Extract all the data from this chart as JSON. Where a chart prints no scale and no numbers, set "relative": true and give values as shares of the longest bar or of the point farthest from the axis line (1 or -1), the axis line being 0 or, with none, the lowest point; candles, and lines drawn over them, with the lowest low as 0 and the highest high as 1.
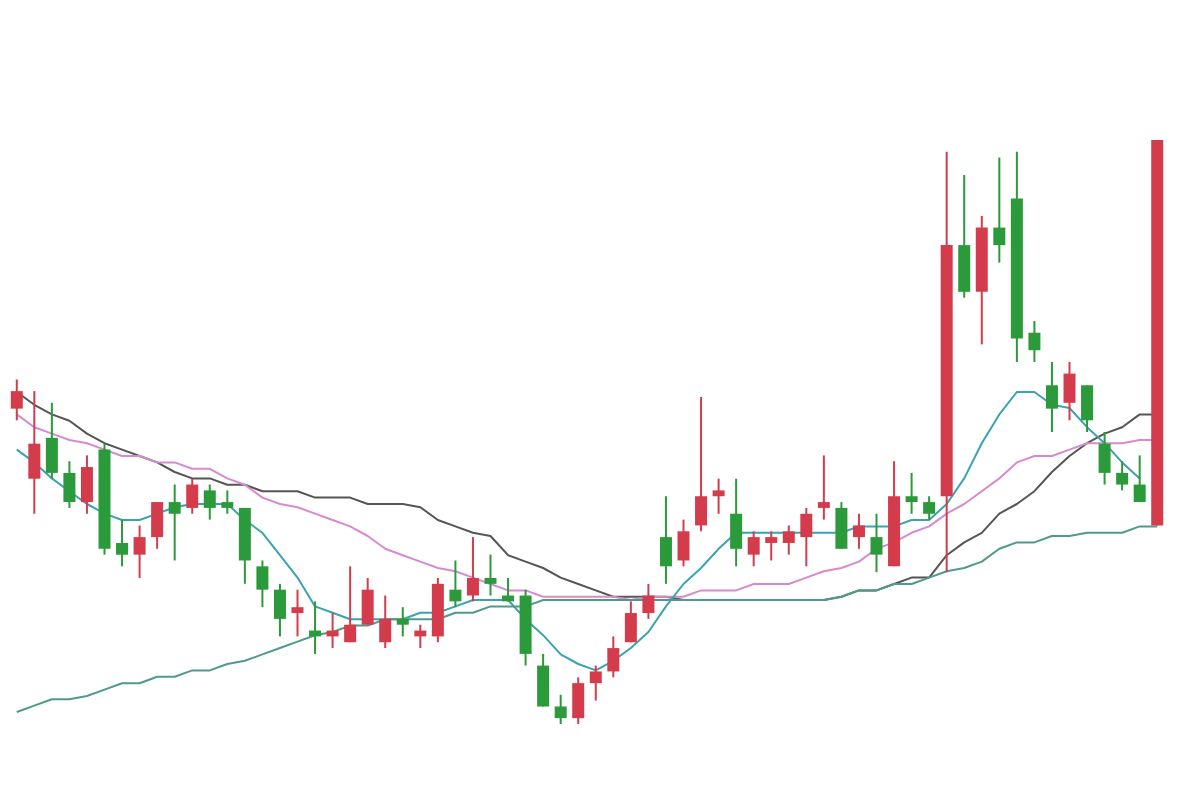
{
  "chart_data": [
    {
      "type": "candlestick",
      "relative": true,
      "categories": [
        null,
        null,
        null,
        null,
        null,
        null,
        null,
        null,
        null,
        null,
        null,
        null,
        null,
        null,
        null,
        null,
        null,
        null,
        null,
        null,
        null,
        null,
        null,
        null,
        null,
        null,
        null,
        null,
        null,
        null,
        null,
        null,
        null,
        null,
        null,
        null,
        null,
        null,
        null,
        null,
        null,
        null,
        null,
        null,
        null,
        null,
        null,
        null,
        null,
        null,
        null,
        null,
        null,
        null,
        null,
        null,
        null,
        null,
        null,
        null,
        null,
        null,
        null,
        null,
        null,
        null
      ],
      "ohlc": [
        [
          0.54,
          0.59,
          0.52,
          0.57
        ],
        [
          0.42,
          0.57,
          0.36,
          0.48
        ],
        [
          0.49,
          0.55,
          0.42,
          0.43
        ],
        [
          0.43,
          0.45,
          0.37,
          0.38
        ],
        [
          0.38,
          0.46,
          0.36,
          0.44
        ],
        [
          0.47,
          0.48,
          0.29,
          0.3
        ],
        [
          0.31,
          0.35,
          0.27,
          0.29
        ],
        [
          0.29,
          0.34,
          0.25,
          0.32
        ],
        [
          0.32,
          0.38,
          0.3,
          0.38
        ],
        [
          0.38,
          0.41,
          0.28,
          0.36
        ],
        [
          0.37,
          0.42,
          0.36,
          0.41
        ],
        [
          0.4,
          0.41,
          0.35,
          0.37
        ],
        [
          0.38,
          0.4,
          0.36,
          0.37
        ],
        [
          0.37,
          0.37,
          0.24,
          0.28
        ],
        [
          0.27,
          0.28,
          0.2,
          0.23
        ],
        [
          0.23,
          0.24,
          0.15,
          0.18
        ],
        [
          0.19,
          0.23,
          0.15,
          0.2
        ],
        [
          0.16,
          0.21,
          0.12,
          0.15
        ],
        [
          0.15,
          0.19,
          0.13,
          0.16
        ],
        [
          0.14,
          0.27,
          0.14,
          0.17
        ],
        [
          0.17,
          0.25,
          0.17,
          0.23
        ],
        [
          0.14,
          0.22,
          0.13,
          0.18
        ],
        [
          0.18,
          0.2,
          0.15,
          0.17
        ],
        [
          0.15,
          0.17,
          0.13,
          0.16
        ],
        [
          0.15,
          0.25,
          0.14,
          0.24
        ],
        [
          0.23,
          0.28,
          0.2,
          0.21
        ],
        [
          0.22,
          0.32,
          0.21,
          0.25
        ],
        [
          0.25,
          0.29,
          0.22,
          0.24
        ],
        [
          0.22,
          0.25,
          0.21,
          0.21
        ],
        [
          0.22,
          0.23,
          0.1,
          0.12
        ],
        [
          0.1,
          0.12,
          0.03,
          0.03
        ],
        [
          0.03,
          0.05,
          0,
          0.01
        ],
        [
          0.01,
          0.08,
          0,
          0.07
        ],
        [
          0.07,
          0.1,
          0.04,
          0.09
        ],
        [
          0.09,
          0.15,
          0.08,
          0.13
        ],
        [
          0.14,
          0.21,
          0.14,
          0.19
        ],
        [
          0.19,
          0.24,
          0.18,
          0.22
        ],
        [
          0.32,
          0.39,
          0.24,
          0.27
        ],
        [
          0.28,
          0.35,
          0.27,
          0.33
        ],
        [
          0.34,
          0.56,
          0.33,
          0.39
        ],
        [
          0.39,
          0.42,
          0.36,
          0.4
        ],
        [
          0.36,
          0.42,
          0.27,
          0.3
        ],
        [
          0.29,
          0.33,
          0.27,
          0.32
        ],
        [
          0.31,
          0.33,
          0.28,
          0.32
        ],
        [
          0.31,
          0.34,
          0.29,
          0.33
        ],
        [
          0.32,
          0.37,
          0.27,
          0.36
        ],
        [
          0.37,
          0.46,
          0.35,
          0.38
        ],
        [
          0.37,
          0.38,
          0.3,
          0.3
        ],
        [
          0.32,
          0.36,
          0.3,
          0.34
        ],
        [
          0.32,
          0.36,
          0.26,
          0.29
        ],
        [
          0.27,
          0.45,
          0.27,
          0.39
        ],
        [
          0.39,
          0.43,
          0.36,
          0.38
        ],
        [
          0.38,
          0.39,
          0.35,
          0.36
        ],
        [
          0.39,
          0.98,
          0.26,
          0.82
        ],
        [
          0.82,
          0.94,
          0.73,
          0.74
        ],
        [
          0.74,
          0.87,
          0.65,
          0.85
        ],
        [
          0.85,
          0.97,
          0.79,
          0.82
        ],
        [
          0.9,
          0.98,
          0.62,
          0.66
        ],
        [
          0.67,
          0.69,
          0.62,
          0.64
        ],
        [
          0.58,
          0.62,
          0.5,
          0.54
        ],
        [
          0.55,
          0.62,
          0.52,
          0.6
        ],
        [
          0.58,
          0.58,
          0.5,
          0.52
        ],
        [
          0.48,
          0.5,
          0.41,
          0.43
        ],
        [
          0.43,
          0.45,
          0.4,
          0.41
        ],
        [
          0.41,
          0.46,
          0.38,
          0.38
        ],
        [
          0.34,
          1,
          0.34,
          1
        ]
      ],
      "colors": [
        "#d43c4c",
        "#d43c4c",
        "#2a9a3a",
        "#2a9a3a",
        "#d43c4c",
        "#2a9a3a",
        "#2a9a3a",
        "#d43c4c",
        "#d43c4c",
        "#2a9a3a",
        "#d43c4c",
        "#2a9a3a",
        "#2a9a3a",
        "#2a9a3a",
        "#2a9a3a",
        "#2a9a3a",
        "#d43c4c",
        "#2a9a3a",
        "#d43c4c",
        "#d43c4c",
        "#d43c4c",
        "#d43c4c",
        "#2a9a3a",
        "#d43c4c",
        "#d43c4c",
        "#2a9a3a",
        "#d43c4c",
        "#2a9a3a",
        "#2a9a3a",
        "#2a9a3a",
        "#2a9a3a",
        "#2a9a3a",
        "#d43c4c",
        "#d43c4c",
        "#d43c4c",
        "#d43c4c",
        "#d43c4c",
        "#2a9a3a",
        "#d43c4c",
        "#d43c4c",
        "#d43c4c",
        "#2a9a3a",
        "#d43c4c",
        "#d43c4c",
        "#d43c4c",
        "#d43c4c",
        "#d43c4c",
        "#2a9a3a",
        "#d43c4c",
        "#2a9a3a",
        "#d43c4c",
        "#2a9a3a",
        "#2a9a3a",
        "#d43c4c",
        "#2a9a3a",
        "#d43c4c",
        "#2a9a3a",
        "#2a9a3a",
        "#2a9a3a",
        "#2a9a3a",
        "#d43c4c",
        "#2a9a3a",
        "#2a9a3a",
        "#2a9a3a",
        "#2a9a3a",
        "#d43c4c"
      ]
    },
    {
      "type": "line",
      "relative": true,
      "categories": [
        null,
        null,
        null,
        null,
        null,
        null,
        null,
        null,
        null,
        null,
        null,
        null,
        null,
        null,
        null,
        null,
        null,
        null,
        null,
        null,
        null,
        null,
        null,
        null,
        null,
        null,
        null,
        null,
        null,
        null,
        null,
        null,
        null,
        null,
        null,
        null,
        null,
        null,
        null,
        null,
        null,
        null,
        null,
        null,
        null,
        null,
        null,
        null,
        null,
        null,
        null,
        null,
        null,
        null,
        null,
        null,
        null,
        null,
        null,
        null,
        null,
        null,
        null,
        null,
        null,
        null
      ],
      "series": [
        {
          "color": "#555555",
          "values": [
            1,
            0.96,
            0.93,
            0.91,
            0.87,
            0.84,
            0.82,
            0.8,
            0.78,
            0.75,
            0.73,
            0.73,
            0.71,
            0.71,
            0.69,
            0.69,
            0.69,
            0.67,
            0.67,
            0.67,
            0.65,
            0.65,
            0.65,
            0.64,
            0.6,
            0.58,
            0.56,
            0.55,
            0.49,
            0.47,
            0.45,
            0.42,
            0.4,
            0.38,
            0.36,
            0.36,
            0.36,
            0.36,
            0.35,
            0.35,
            0.35,
            0.35,
            0.35,
            0.35,
            0.35,
            0.35,
            0.35,
            0.36,
            0.38,
            0.38,
            0.4,
            0.42,
            0.42,
            0.49,
            0.53,
            0.56,
            0.62,
            0.65,
            0.69,
            0.75,
            0.8,
            0.84,
            0.87,
            0.89,
            0.93,
            0.93
          ]
        },
        {
          "color": "#d68ad0",
          "values": [
            0.93,
            0.89,
            0.87,
            0.85,
            0.84,
            0.82,
            0.8,
            0.8,
            0.78,
            0.78,
            0.76,
            0.76,
            0.73,
            0.71,
            0.67,
            0.65,
            0.64,
            0.62,
            0.6,
            0.58,
            0.55,
            0.51,
            0.49,
            0.47,
            0.45,
            0.44,
            0.42,
            0.4,
            0.38,
            0.38,
            0.36,
            0.36,
            0.36,
            0.36,
            0.36,
            0.35,
            0.36,
            0.36,
            0.36,
            0.38,
            0.38,
            0.38,
            0.4,
            0.4,
            0.4,
            0.42,
            0.44,
            0.45,
            0.47,
            0.51,
            0.53,
            0.56,
            0.58,
            0.62,
            0.65,
            0.69,
            0.73,
            0.78,
            0.8,
            0.8,
            0.82,
            0.84,
            0.84,
            0.84,
            0.85,
            0.85
          ]
        },
        {
          "color": "#3aa3b0",
          "values": [
            0.82,
            0.78,
            0.73,
            0.69,
            0.65,
            0.62,
            0.6,
            0.6,
            0.62,
            0.64,
            0.65,
            0.65,
            0.65,
            0.6,
            0.56,
            0.49,
            0.42,
            0.33,
            0.31,
            0.29,
            0.29,
            0.29,
            0.29,
            0.31,
            0.31,
            0.33,
            0.35,
            0.35,
            0.35,
            0.29,
            0.24,
            0.18,
            0.15,
            0.13,
            0.16,
            0.2,
            0.25,
            0.33,
            0.4,
            0.45,
            0.51,
            0.56,
            0.56,
            0.56,
            0.56,
            0.56,
            0.56,
            0.56,
            0.58,
            0.58,
            0.58,
            0.6,
            0.6,
            0.65,
            0.73,
            0.84,
            0.93,
            1,
            1,
            0.96,
            0.95,
            0.89,
            0.84,
            0.78,
            0.73,
            null
          ]
        },
        {
          "color": "#4f9a8a",
          "values": [
            0,
            0.02,
            0.04,
            0.04,
            0.05,
            0.07,
            0.09,
            0.09,
            0.11,
            0.11,
            0.13,
            0.13,
            0.15,
            0.16,
            0.18,
            0.2,
            0.22,
            0.24,
            0.25,
            0.27,
            0.27,
            0.29,
            0.29,
            0.29,
            0.29,
            0.31,
            0.31,
            0.33,
            0.33,
            0.33,
            0.35,
            0.35,
            0.35,
            0.35,
            0.35,
            0.35,
            0.35,
            0.35,
            0.35,
            0.35,
            0.35,
            0.35,
            0.35,
            0.35,
            0.35,
            0.35,
            0.35,
            0.36,
            0.38,
            0.38,
            0.4,
            0.4,
            0.42,
            0.44,
            0.45,
            0.47,
            0.51,
            0.53,
            0.53,
            0.55,
            0.55,
            0.56,
            0.56,
            0.56,
            0.58,
            0.58
          ]
        }
      ]
    }
  ]
}
